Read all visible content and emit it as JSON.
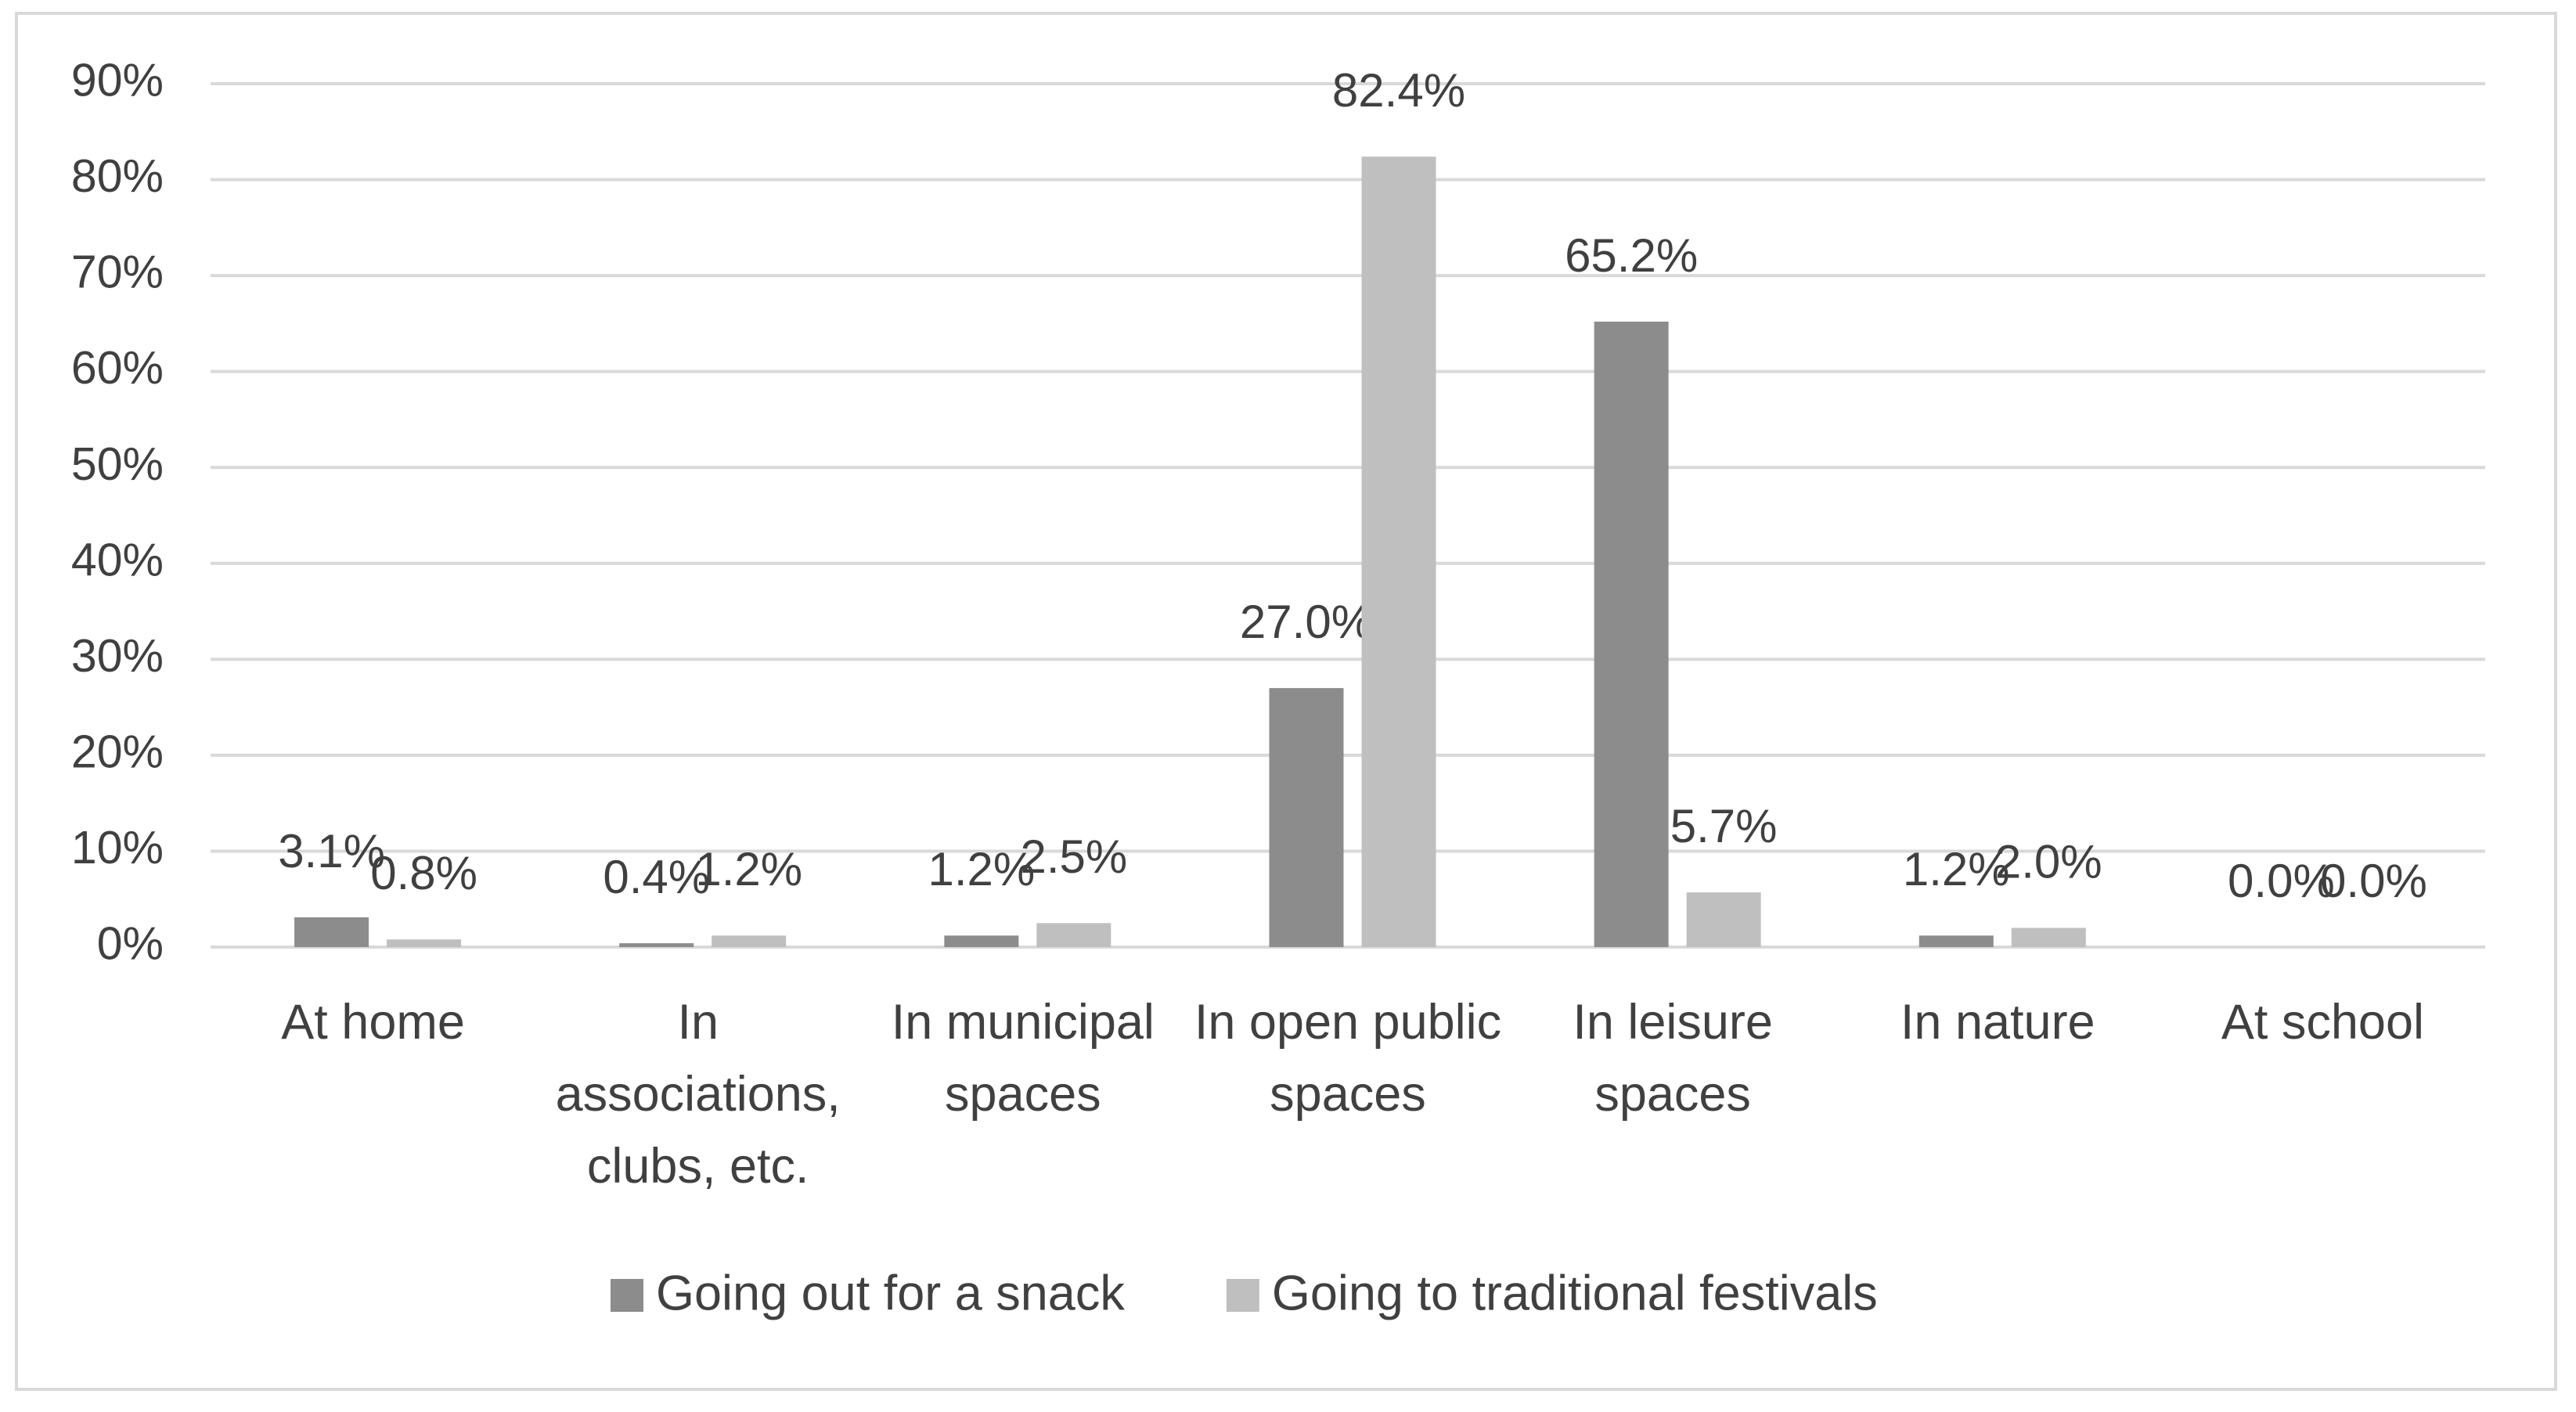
{
  "chart_data": {
    "type": "bar",
    "categories": [
      "At home",
      "In associations, clubs, etc.",
      "In municipal spaces",
      "In open public spaces",
      "In leisure spaces",
      "In nature",
      "At school"
    ],
    "series": [
      {
        "name": "Going out for a snack",
        "color": "#8c8c8c",
        "values": [
          3.1,
          0.4,
          1.2,
          27.0,
          65.2,
          1.2,
          0.0
        ],
        "value_labels": [
          "3.1%",
          "0.4%",
          "1.2%",
          "27.0%",
          "65.2%",
          "1.2%",
          "0.0%"
        ]
      },
      {
        "name": "Going to traditional festivals",
        "color": "#bfbfbf",
        "values": [
          0.8,
          1.2,
          2.5,
          82.4,
          5.7,
          2.0,
          0.0
        ],
        "value_labels": [
          "0.8%",
          "1.2%",
          "2.5%",
          "82.4%",
          "5.7%",
          "2.0%",
          "0.0%"
        ]
      }
    ],
    "ylim": [
      0,
      90
    ],
    "yticks": [
      {
        "value": 0,
        "label": "0%"
      },
      {
        "value": 10,
        "label": "10%"
      },
      {
        "value": 20,
        "label": "20%"
      },
      {
        "value": 30,
        "label": "30%"
      },
      {
        "value": 40,
        "label": "40%"
      },
      {
        "value": 50,
        "label": "50%"
      },
      {
        "value": 60,
        "label": "60%"
      },
      {
        "value": 70,
        "label": "70%"
      },
      {
        "value": 80,
        "label": "80%"
      },
      {
        "value": 90,
        "label": "90%"
      }
    ],
    "grid": true,
    "legend": "bottom"
  }
}
